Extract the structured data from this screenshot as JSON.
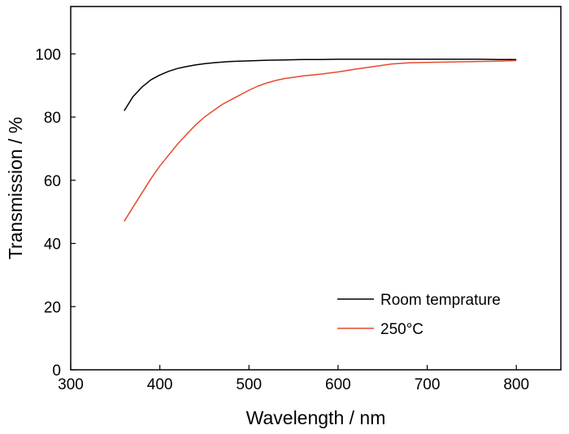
{
  "chart_data": {
    "type": "line",
    "title": "",
    "xlabel": "Wavelength / nm",
    "ylabel": "Transmission / %",
    "xlim": [
      300,
      850
    ],
    "ylim": [
      0,
      115
    ],
    "xticks": [
      300,
      400,
      500,
      600,
      700,
      800
    ],
    "yticks": [
      0,
      20,
      40,
      60,
      80,
      100
    ],
    "grid": false,
    "legend_position": "bottom-right",
    "series": [
      {
        "name": "Room temprature",
        "color": "#000000",
        "x": [
          360,
          370,
          380,
          390,
          400,
          410,
          420,
          430,
          440,
          450,
          460,
          470,
          480,
          490,
          500,
          520,
          540,
          560,
          580,
          600,
          620,
          640,
          660,
          680,
          700,
          720,
          740,
          760,
          780,
          800
        ],
        "y": [
          82.0,
          86.5,
          89.5,
          91.8,
          93.3,
          94.5,
          95.4,
          96.0,
          96.5,
          96.9,
          97.2,
          97.4,
          97.6,
          97.7,
          97.8,
          98.0,
          98.1,
          98.2,
          98.2,
          98.3,
          98.3,
          98.3,
          98.3,
          98.3,
          98.3,
          98.3,
          98.3,
          98.3,
          98.2,
          98.2
        ]
      },
      {
        "name": "250°C",
        "color": "#e8492c",
        "x": [
          360,
          370,
          380,
          390,
          400,
          410,
          420,
          430,
          440,
          450,
          460,
          470,
          480,
          490,
          500,
          510,
          520,
          530,
          540,
          550,
          560,
          580,
          600,
          620,
          640,
          660,
          680,
          700,
          720,
          740,
          760,
          780,
          800
        ],
        "y": [
          47.0,
          51.5,
          56.0,
          60.5,
          64.5,
          68.0,
          71.5,
          74.5,
          77.5,
          80.0,
          82.0,
          84.0,
          85.5,
          87.0,
          88.5,
          89.8,
          90.8,
          91.6,
          92.2,
          92.6,
          93.0,
          93.6,
          94.3,
          95.2,
          96.0,
          96.8,
          97.2,
          97.3,
          97.4,
          97.5,
          97.6,
          97.7,
          97.9
        ]
      }
    ]
  },
  "legend": {
    "items": [
      "Room temprature",
      "250°C"
    ]
  }
}
